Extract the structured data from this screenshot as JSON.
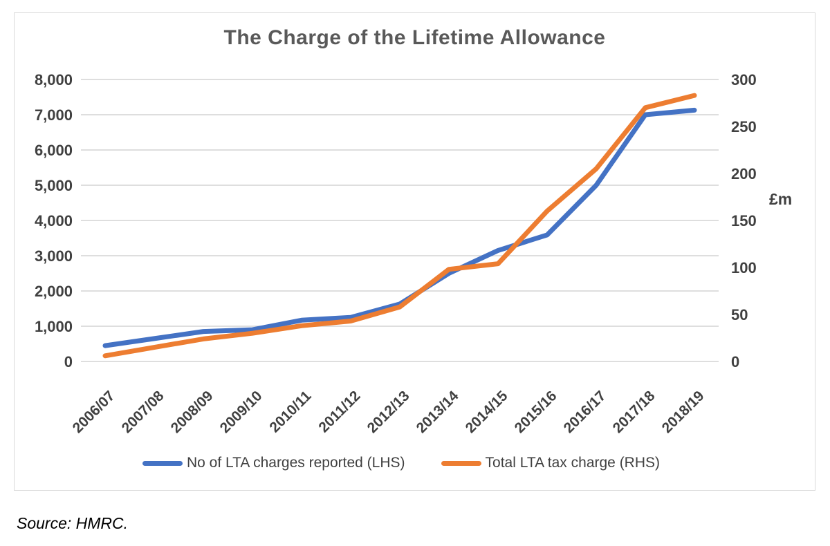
{
  "chart": {
    "source_note": "Source: HMRC.",
    "colors": {
      "series_blue": "#4472C4",
      "series_orange": "#ED7D31",
      "gridline": "#d9d9d9",
      "frame_border": "#d9d9d9",
      "tick_text": "#404040",
      "title_text": "#595959"
    }
  },
  "chart_data": {
    "type": "line",
    "title": "The Charge of the Lifetime Allowance",
    "categories": [
      "2006/07",
      "2007/08",
      "2008/09",
      "2009/10",
      "2010/11",
      "2011/12",
      "2012/13",
      "2013/14",
      "2014/15",
      "2015/16",
      "2016/17",
      "2017/18",
      "2018/19"
    ],
    "series": [
      {
        "name": "No of LTA charges reported (LHS)",
        "axis": "left",
        "color": "#4472C4",
        "values": [
          450,
          650,
          850,
          900,
          1170,
          1250,
          1630,
          2500,
          3150,
          3590,
          5000,
          7000,
          7130
        ]
      },
      {
        "name": "Total LTA tax charge (RHS)",
        "axis": "right",
        "color": "#ED7D31",
        "values": [
          6,
          15,
          24,
          30,
          38,
          43,
          58,
          98,
          104,
          160,
          205,
          270,
          283
        ]
      }
    ],
    "left_axis": {
      "min": 0,
      "max": 8000,
      "step": 1000,
      "tick_labels": [
        "0",
        "1,000",
        "2,000",
        "3,000",
        "4,000",
        "5,000",
        "6,000",
        "7,000",
        "8,000"
      ]
    },
    "right_axis": {
      "min": 0,
      "max": 300,
      "step": 50,
      "tick_labels": [
        "0",
        "50",
        "100",
        "150",
        "200",
        "250",
        "300"
      ],
      "unit": "£m"
    },
    "grid": true,
    "legend_position": "bottom"
  }
}
